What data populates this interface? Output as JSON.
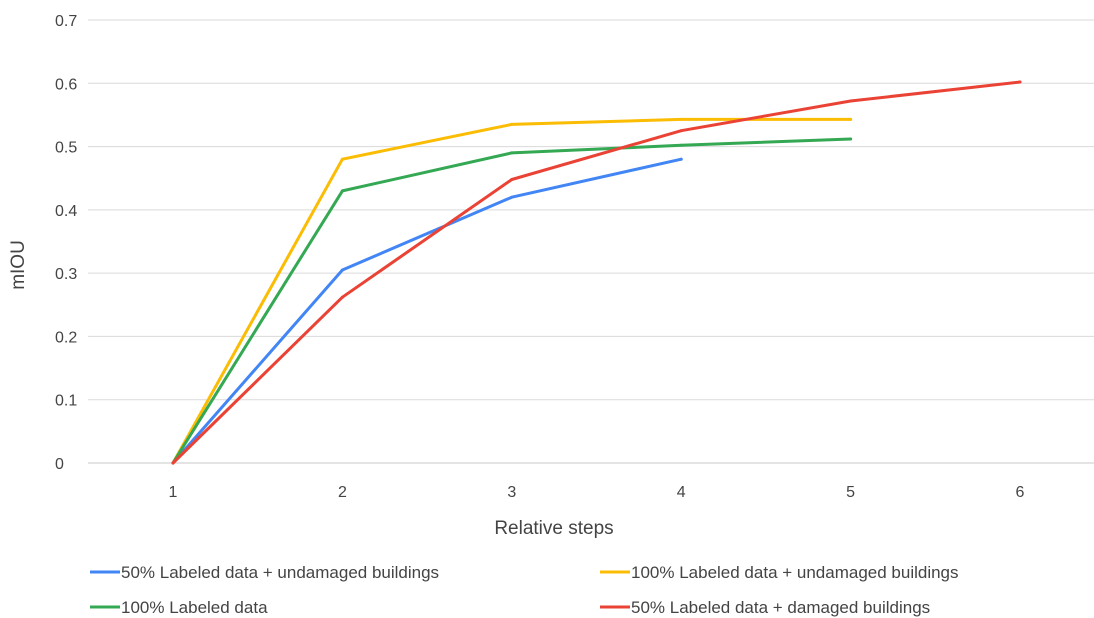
{
  "chart_data": {
    "type": "line",
    "xlabel": "Relative steps",
    "ylabel": "mIOU",
    "x_ticks": [
      "1",
      "2",
      "3",
      "4",
      "5",
      "6"
    ],
    "y_ticks": [
      "0",
      "0.1",
      "0.2",
      "0.3",
      "0.4",
      "0.5",
      "0.6",
      "0.7"
    ],
    "ylim": [
      0,
      0.7
    ],
    "grid": "horizontal",
    "legend_position": "bottom",
    "series": [
      {
        "name": "50% Labeled data + undamaged buildings",
        "color": "#4285f4",
        "x": [
          1,
          2,
          3,
          4
        ],
        "values": [
          0,
          0.305,
          0.42,
          0.48
        ]
      },
      {
        "name": "100% Labeled data + undamaged buildings",
        "color": "#fbbc04",
        "x": [
          1,
          2,
          3,
          4,
          5
        ],
        "values": [
          0,
          0.48,
          0.535,
          0.543,
          0.543
        ]
      },
      {
        "name": "100% Labeled data",
        "color": "#34a853",
        "x": [
          1,
          2,
          3,
          4,
          5
        ],
        "values": [
          0,
          0.43,
          0.49,
          0.502,
          0.512
        ]
      },
      {
        "name": "50% Labeled data + damaged buildings",
        "color": "#ea4335",
        "x": [
          1,
          2,
          3,
          4,
          5,
          6
        ],
        "values": [
          0,
          0.262,
          0.448,
          0.525,
          0.572,
          0.602
        ]
      }
    ]
  }
}
